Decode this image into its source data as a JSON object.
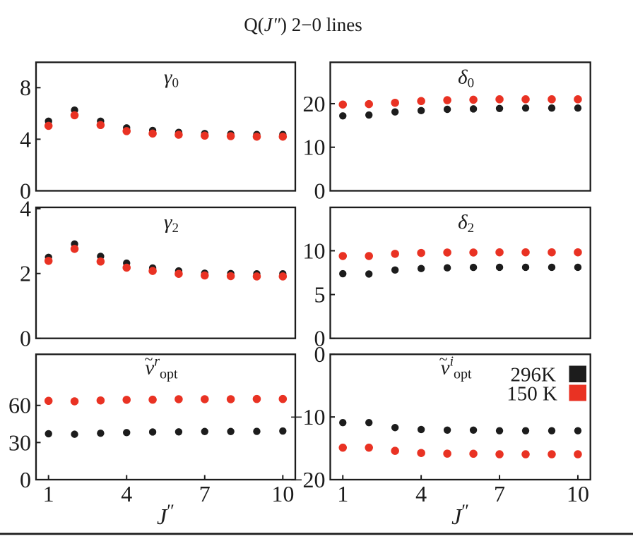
{
  "title": {
    "pre": "Q(",
    "j": "J″",
    "post": ") 2−0 lines"
  },
  "colors": {
    "black": "#1c1c1c",
    "red": "#e93223",
    "frame": "#1c1c1c"
  },
  "legend": {
    "items": [
      {
        "label": "296K",
        "color_key": "black"
      },
      {
        "label": "150 K",
        "color_key": "red"
      }
    ]
  },
  "x_axis": {
    "label_main": "J",
    "label_prime": "″",
    "major_ticks": [
      1,
      4,
      7,
      10
    ],
    "range": [
      0.52,
      10.48
    ]
  },
  "chart_data": {
    "type": "scatter",
    "x_values": [
      1,
      2,
      3,
      4,
      5,
      6,
      7,
      8,
      9,
      10
    ],
    "x_label": "J″",
    "panels": [
      {
        "id": "gamma0",
        "label": {
          "letter": "γ",
          "sub": "0"
        },
        "row": 0,
        "col": 0,
        "ylim": [
          0,
          9.97
        ],
        "yticks": [
          0,
          4,
          8
        ],
        "series": [
          {
            "name": "296K",
            "color_key": "black",
            "values": [
              5.4,
              6.26,
              5.4,
              4.88,
              4.68,
              4.53,
              4.44,
              4.4,
              4.37,
              4.37
            ]
          },
          {
            "name": "150 K",
            "color_key": "red",
            "values": [
              5.04,
              5.86,
              5.1,
              4.63,
              4.44,
              4.35,
              4.28,
              4.24,
              4.2,
              4.2
            ]
          }
        ]
      },
      {
        "id": "delta0",
        "label": {
          "letter": "δ",
          "sub": "0"
        },
        "row": 0,
        "col": 1,
        "ylim": [
          0,
          29.5
        ],
        "yticks": [
          0,
          10,
          20
        ],
        "series": [
          {
            "name": "296K",
            "color_key": "black",
            "values": [
              17.2,
              17.4,
              18.1,
              18.4,
              18.7,
              18.8,
              18.9,
              19.0,
              19.0,
              19.0
            ]
          },
          {
            "name": "150 K",
            "color_key": "red",
            "values": [
              19.8,
              19.9,
              20.2,
              20.6,
              20.8,
              20.9,
              21.0,
              21.0,
              21.0,
              21.0
            ]
          }
        ]
      },
      {
        "id": "gamma2",
        "label": {
          "letter": "γ",
          "sub": "2"
        },
        "row": 1,
        "col": 0,
        "ylim": [
          0,
          4.04
        ],
        "yticks": [
          0,
          2,
          4
        ],
        "series": [
          {
            "name": "296K",
            "color_key": "black",
            "values": [
              2.5,
              2.91,
              2.53,
              2.32,
              2.17,
              2.08,
              2.01,
              2.0,
              1.99,
              1.99
            ]
          },
          {
            "name": "150 K",
            "color_key": "red",
            "values": [
              2.39,
              2.76,
              2.37,
              2.18,
              2.08,
              1.99,
              1.94,
              1.92,
              1.91,
              1.91
            ]
          }
        ]
      },
      {
        "id": "delta2",
        "label": {
          "letter": "δ",
          "sub": "2"
        },
        "row": 1,
        "col": 1,
        "ylim": [
          0,
          14.95
        ],
        "yticks": [
          0,
          5,
          10
        ],
        "series": [
          {
            "name": "296K",
            "color_key": "black",
            "values": [
              7.38,
              7.35,
              7.8,
              7.97,
              8.05,
              8.1,
              8.11,
              8.11,
              8.11,
              8.11
            ]
          },
          {
            "name": "150 K",
            "color_key": "red",
            "values": [
              9.4,
              9.4,
              9.65,
              9.75,
              9.8,
              9.8,
              9.82,
              9.82,
              9.82,
              9.82
            ]
          }
        ]
      },
      {
        "id": "nu_r_opt",
        "label": {
          "letter": "ν",
          "accent": "~",
          "sup": "r",
          "sub": "opt"
        },
        "row": 2,
        "col": 0,
        "ylim": [
          0,
          101.3
        ],
        "yticks": [
          0,
          30,
          60
        ],
        "series": [
          {
            "name": "296K",
            "color_key": "black",
            "values": [
              37.1,
              36.7,
              37.5,
              38.0,
              38.5,
              38.6,
              38.9,
              38.9,
              39.0,
              39.3
            ]
          },
          {
            "name": "150 K",
            "color_key": "red",
            "values": [
              63.7,
              63.3,
              64.0,
              64.5,
              64.6,
              65.0,
              65.0,
              65.0,
              65.2,
              65.2
            ]
          }
        ]
      },
      {
        "id": "nu_i_opt",
        "label": {
          "letter": "ν",
          "accent": "~",
          "sup": "i",
          "sub": "opt"
        },
        "row": 2,
        "col": 1,
        "ylim": [
          -20,
          0
        ],
        "yticks": [
          -20,
          -10,
          0
        ],
        "series": [
          {
            "name": "296K",
            "color_key": "black",
            "values": [
              -10.9,
              -10.9,
              -11.7,
              -12.0,
              -12.1,
              -12.1,
              -12.2,
              -12.2,
              -12.2,
              -12.2
            ]
          },
          {
            "name": "150 K",
            "color_key": "red",
            "values": [
              -14.9,
              -14.9,
              -15.4,
              -15.75,
              -15.85,
              -15.87,
              -15.95,
              -15.95,
              -15.95,
              -15.95
            ]
          }
        ]
      }
    ]
  }
}
